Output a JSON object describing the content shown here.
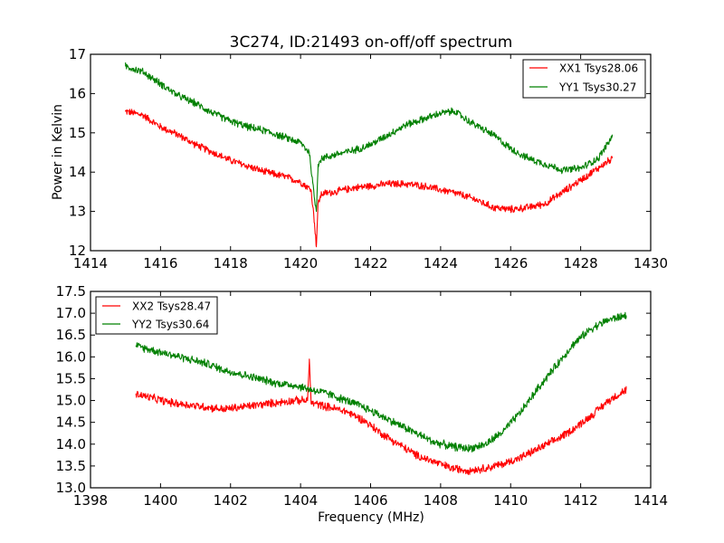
{
  "chart_data": [
    {
      "type": "line",
      "title": "3C274, ID:21493 on-off/off spectrum",
      "xlabel": "",
      "ylabel": "Power in Kelvin",
      "xlim": [
        1414,
        1430
      ],
      "ylim": [
        12,
        17
      ],
      "xticks": [
        "1414",
        "1416",
        "1418",
        "1420",
        "1422",
        "1424",
        "1426",
        "1428",
        "1430"
      ],
      "yticks": [
        "12",
        "13",
        "14",
        "15",
        "16",
        "17"
      ],
      "grid": false,
      "legend_position": "top-right",
      "noise": 0.09,
      "series": [
        {
          "name": "XX1 Tsys28.06",
          "color": "#ff0000",
          "x": [
            1415.0,
            1415.5,
            1416.0,
            1416.5,
            1417.0,
            1417.5,
            1418.0,
            1418.5,
            1419.0,
            1419.5,
            1420.0,
            1420.3,
            1420.4,
            1420.45,
            1420.5,
            1420.6,
            1421.0,
            1421.5,
            1422.0,
            1422.5,
            1423.0,
            1423.5,
            1424.0,
            1424.5,
            1425.0,
            1425.5,
            1426.0,
            1426.5,
            1427.0,
            1427.5,
            1428.0,
            1428.5,
            1428.9
          ],
          "y": [
            15.55,
            15.45,
            15.15,
            14.95,
            14.7,
            14.5,
            14.3,
            14.15,
            14.0,
            13.9,
            13.75,
            13.55,
            12.7,
            12.1,
            13.2,
            13.45,
            13.5,
            13.6,
            13.65,
            13.7,
            13.7,
            13.65,
            13.55,
            13.45,
            13.3,
            13.1,
            13.05,
            13.1,
            13.2,
            13.5,
            13.8,
            14.1,
            14.35
          ]
        },
        {
          "name": "YY1 Tsys30.27",
          "color": "#008000",
          "x": [
            1415.0,
            1415.5,
            1416.0,
            1416.5,
            1417.0,
            1417.5,
            1418.0,
            1418.5,
            1419.0,
            1419.5,
            1420.0,
            1420.25,
            1420.4,
            1420.45,
            1420.5,
            1420.6,
            1421.0,
            1421.5,
            1422.0,
            1422.5,
            1423.0,
            1423.5,
            1424.0,
            1424.4,
            1424.8,
            1425.5,
            1426.0,
            1426.5,
            1427.0,
            1427.5,
            1428.0,
            1428.5,
            1428.9
          ],
          "y": [
            16.7,
            16.55,
            16.25,
            15.95,
            15.75,
            15.5,
            15.3,
            15.15,
            15.05,
            14.9,
            14.75,
            14.5,
            13.3,
            13.0,
            14.2,
            14.35,
            14.45,
            14.55,
            14.7,
            14.95,
            15.2,
            15.35,
            15.5,
            15.55,
            15.3,
            14.95,
            14.6,
            14.35,
            14.2,
            14.05,
            14.1,
            14.35,
            14.9
          ]
        }
      ]
    },
    {
      "type": "line",
      "title": "",
      "xlabel": "Frequency (MHz)",
      "ylabel": "",
      "xlim": [
        1398,
        1414
      ],
      "ylim": [
        13.0,
        17.5
      ],
      "xticks": [
        "1398",
        "1400",
        "1402",
        "1404",
        "1406",
        "1408",
        "1410",
        "1412",
        "1414"
      ],
      "yticks": [
        "13.0",
        "13.5",
        "14.0",
        "14.5",
        "15.0",
        "15.5",
        "16.0",
        "16.5",
        "17.0",
        "17.5"
      ],
      "grid": false,
      "legend_position": "top-left",
      "noise": 0.09,
      "series": [
        {
          "name": "XX2 Tsys28.47",
          "color": "#ff0000",
          "x": [
            1399.3,
            1399.8,
            1400.3,
            1400.8,
            1401.3,
            1401.8,
            1402.3,
            1402.8,
            1403.3,
            1403.8,
            1404.2,
            1404.25,
            1404.3,
            1404.8,
            1405.3,
            1405.8,
            1406.3,
            1406.8,
            1407.3,
            1407.8,
            1408.3,
            1408.8,
            1409.3,
            1409.8,
            1410.3,
            1410.8,
            1411.3,
            1411.8,
            1412.3,
            1412.8,
            1413.3
          ],
          "y": [
            15.15,
            15.05,
            14.95,
            14.9,
            14.85,
            14.8,
            14.85,
            14.9,
            14.95,
            15.0,
            15.0,
            15.95,
            14.95,
            14.85,
            14.75,
            14.55,
            14.25,
            14.0,
            13.75,
            13.6,
            13.45,
            13.4,
            13.45,
            13.55,
            13.7,
            13.9,
            14.1,
            14.35,
            14.65,
            15.0,
            15.25
          ]
        },
        {
          "name": "YY2 Tsys30.64",
          "color": "#008000",
          "x": [
            1399.3,
            1399.8,
            1400.3,
            1400.8,
            1401.3,
            1401.8,
            1402.3,
            1402.8,
            1403.3,
            1403.8,
            1404.3,
            1404.8,
            1405.3,
            1405.8,
            1406.3,
            1406.8,
            1407.3,
            1407.8,
            1408.3,
            1408.8,
            1409.3,
            1409.8,
            1410.3,
            1410.8,
            1411.3,
            1411.8,
            1412.3,
            1412.8,
            1413.3
          ],
          "y": [
            16.25,
            16.15,
            16.05,
            15.95,
            15.85,
            15.7,
            15.6,
            15.5,
            15.4,
            15.35,
            15.25,
            15.15,
            15.0,
            14.85,
            14.65,
            14.45,
            14.25,
            14.05,
            13.95,
            13.9,
            14.0,
            14.3,
            14.75,
            15.3,
            15.8,
            16.3,
            16.65,
            16.85,
            16.95
          ]
        }
      ]
    }
  ]
}
